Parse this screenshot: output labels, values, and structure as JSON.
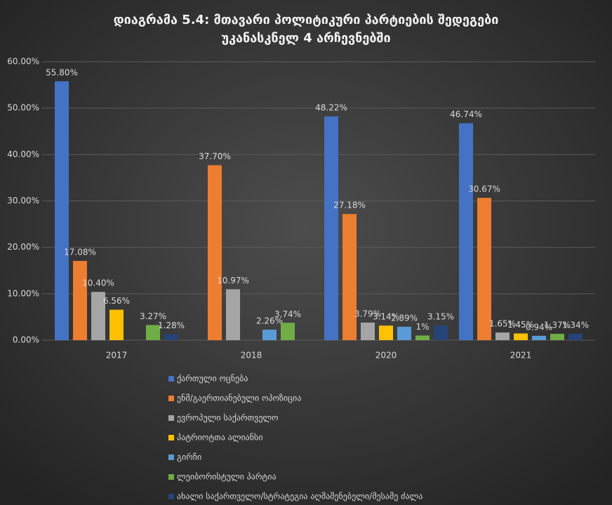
{
  "chart_data": {
    "type": "bar",
    "title": [
      "დიაგრამა 5.4: მთავარი პოლიტიკური პარტიების შედეგები",
      "უკანასკნელ 4 არჩევნებში"
    ],
    "categories": [
      "2017",
      "2018",
      "2020",
      "2021"
    ],
    "ylim": [
      0,
      60
    ],
    "yticks": [
      {
        "value": 0,
        "label": "0.00%"
      },
      {
        "value": 10,
        "label": "10.00%"
      },
      {
        "value": 20,
        "label": "20.00%"
      },
      {
        "value": 30,
        "label": "30.00%"
      },
      {
        "value": 40,
        "label": "40.00%"
      },
      {
        "value": 50,
        "label": "50.00%"
      },
      {
        "value": 60,
        "label": "60.00%"
      }
    ],
    "grid": true,
    "legend": "bottom",
    "series": [
      {
        "name": "ქართული ოცნება",
        "color": "#4472c4",
        "values": [
          55.8,
          null,
          48.22,
          46.74
        ],
        "value_labels": [
          "55.80%",
          null,
          "48.22%",
          "46.74%"
        ]
      },
      {
        "name": "ენმ/გაერთიანებული ოპოზიცია",
        "color": "#ed7d31",
        "values": [
          17.08,
          37.7,
          27.18,
          30.67
        ],
        "value_labels": [
          "17.08%",
          "37.70%",
          "27.18%",
          "30.67%"
        ]
      },
      {
        "name": "ევროპული საქართველო",
        "color": "#a5a5a5",
        "values": [
          10.4,
          10.97,
          3.79,
          1.65
        ],
        "value_labels": [
          "10.40%",
          "10.97%",
          "3.79%",
          "1.65%"
        ]
      },
      {
        "name": "პატრიოტთა ალიანსი",
        "color": "#ffc000",
        "values": [
          6.56,
          null,
          3.14,
          1.45
        ],
        "value_labels": [
          "6.56%",
          null,
          "3.14%",
          "1.45%"
        ]
      },
      {
        "name": "გირჩი",
        "color": "#5b9bd5",
        "values": [
          null,
          2.26,
          2.89,
          0.94
        ],
        "value_labels": [
          null,
          "2.26%",
          "2.89%",
          "0.94%"
        ]
      },
      {
        "name": "ლეიბორისტული პარტია",
        "color": "#70ad47",
        "values": [
          3.27,
          3.74,
          1,
          1.37
        ],
        "value_labels": [
          "3.27%",
          "3.74%",
          "1%",
          "1.37%"
        ]
      },
      {
        "name": "ახალი საქართველო/სტრატეგია აღმაშენებელი/მესამე ძალა",
        "color": "#264478",
        "values": [
          1.28,
          null,
          3.15,
          1.34
        ],
        "value_labels": [
          "1.28%",
          null,
          "3.15%",
          "1.34%"
        ]
      }
    ]
  }
}
